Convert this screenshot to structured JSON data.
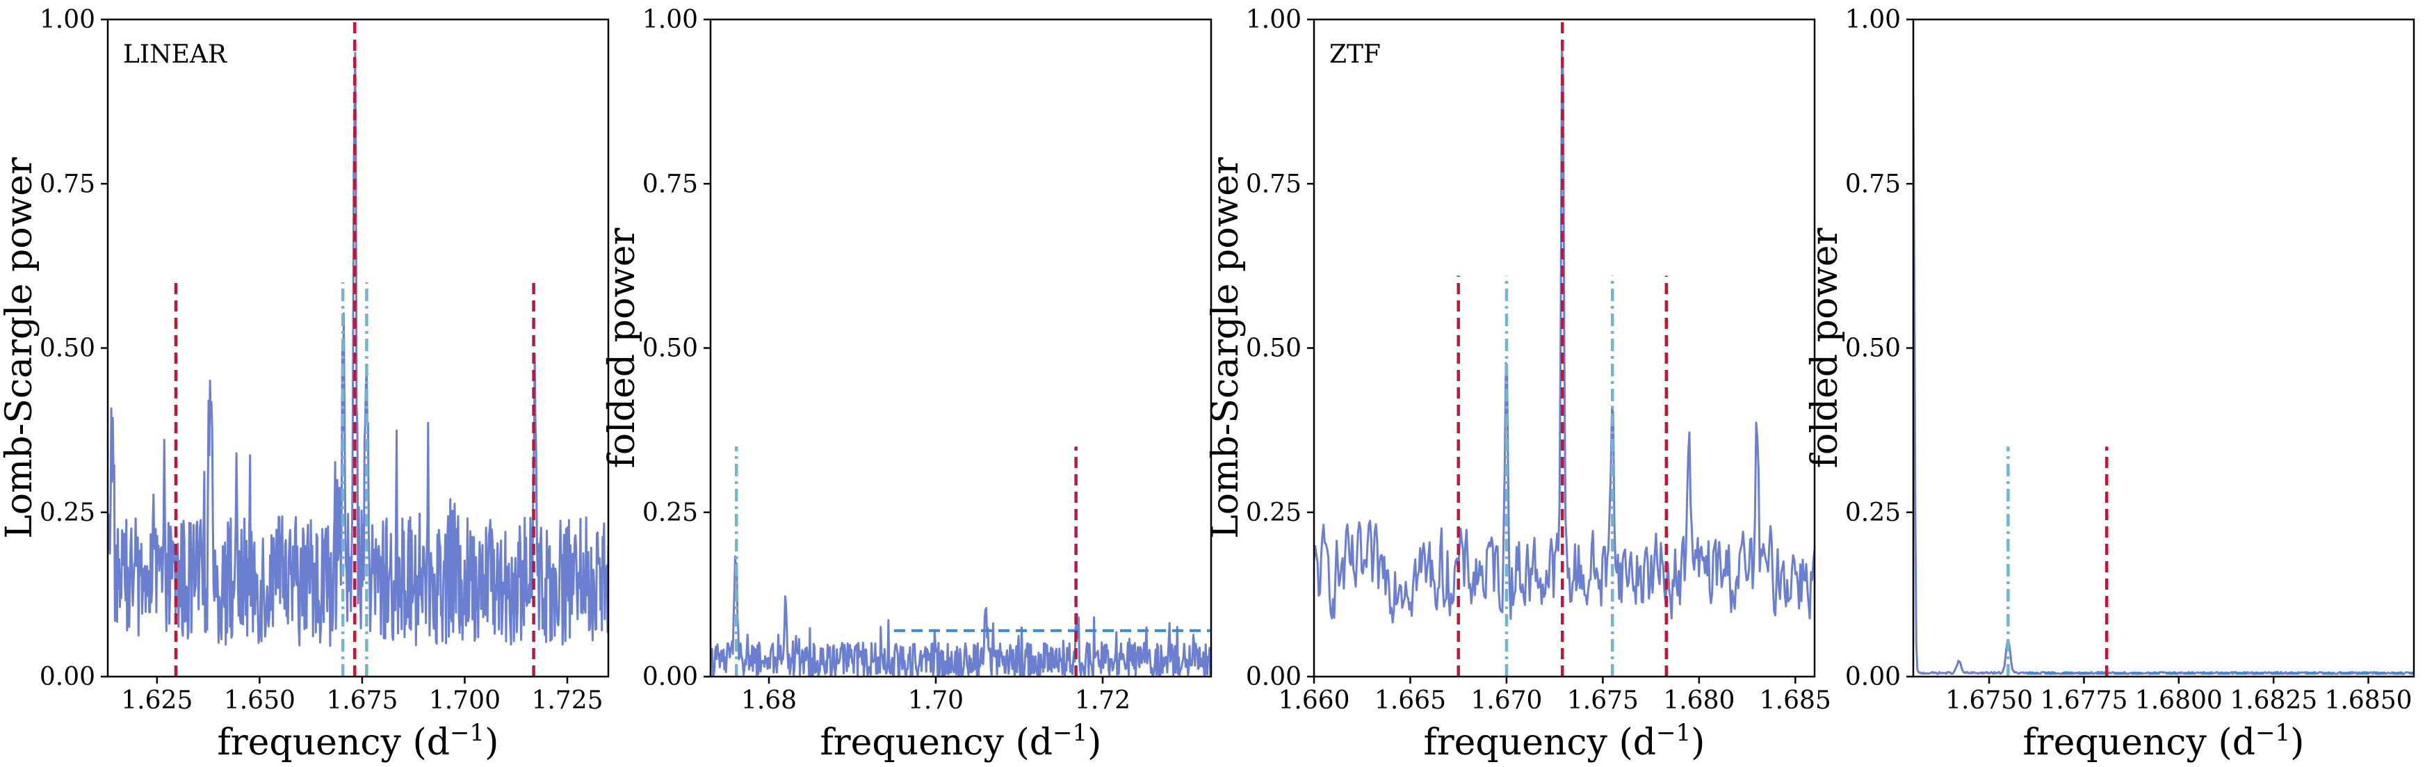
{
  "figure": {
    "colors": {
      "spectrum": "#6a7fcf",
      "red_marker": "#c0163a",
      "teal_marker": "#70b6d0",
      "threshold": "#3a8ad6",
      "frame": "#000000"
    }
  },
  "chart_data": [
    {
      "type": "line",
      "panel_tag": "LINEAR",
      "xlabel": "frequency (d",
      "xlabel_sup": "−1",
      "xlabel_end": ")",
      "ylabel": "Lomb-Scargle power",
      "xlim": [
        1.613,
        1.735
      ],
      "ylim": [
        0,
        1
      ],
      "xticks": [
        1.625,
        1.65,
        1.675,
        1.7,
        1.725
      ],
      "xtick_labels": [
        "1.625",
        "1.650",
        "1.675",
        "1.700",
        "1.725"
      ],
      "yticks": [
        0,
        0.25,
        0.5,
        0.75,
        1.0
      ],
      "ytick_labels": [
        "0.00",
        "0.25",
        "0.50",
        "0.75",
        "1.00"
      ],
      "grid": false,
      "series": [
        {
          "style": "noisy-spectrum",
          "baseline": 0.13,
          "noise": 0.09,
          "count": 700,
          "peaks": [
            {
              "x": 1.6732,
              "y": 0.94
            },
            {
              "x": 1.6705,
              "y": 0.48
            },
            {
              "x": 1.676,
              "y": 0.46
            },
            {
              "x": 1.717,
              "y": 0.44
            },
            {
              "x": 1.638,
              "y": 0.43
            },
            {
              "x": 1.614,
              "y": 0.37
            }
          ]
        }
      ],
      "vlines": [
        {
          "x": 1.6296,
          "y0": 0,
          "y1": 0.6,
          "style": "red-dashed"
        },
        {
          "x": 1.6732,
          "y0": 0,
          "y1": 1.0,
          "style": "red-dashed"
        },
        {
          "x": 1.7168,
          "y0": 0,
          "y1": 0.6,
          "style": "red-dashed"
        },
        {
          "x": 1.6703,
          "y0": 0,
          "y1": 0.6,
          "style": "teal-dashdot"
        },
        {
          "x": 1.6761,
          "y0": 0,
          "y1": 0.6,
          "style": "teal-dashdot"
        }
      ],
      "hlines": []
    },
    {
      "type": "line",
      "panel_tag": "",
      "xlabel": "frequency (d",
      "xlabel_sup": "−1",
      "xlabel_end": ")",
      "ylabel": "folded power",
      "xlim": [
        1.673,
        1.733
      ],
      "ylim": [
        0,
        1
      ],
      "xticks": [
        1.68,
        1.7,
        1.72
      ],
      "xtick_labels": [
        "1.68",
        "1.70",
        "1.72"
      ],
      "yticks": [
        0,
        0.25,
        0.5,
        0.75,
        1.0
      ],
      "ytick_labels": [
        "0.00",
        "0.25",
        "0.50",
        "0.75",
        "1.00"
      ],
      "grid": false,
      "series": [
        {
          "style": "low-spectrum",
          "baseline": 0.02,
          "noise": 0.025,
          "count": 650,
          "peaks": [
            {
              "x": 1.676,
              "y": 0.19
            },
            {
              "x": 1.682,
              "y": 0.1
            },
            {
              "x": 1.706,
              "y": 0.1
            },
            {
              "x": 1.717,
              "y": 0.08
            }
          ]
        }
      ],
      "vlines": [
        {
          "x": 1.6761,
          "y0": 0,
          "y1": 0.35,
          "style": "teal-dashdot"
        },
        {
          "x": 1.7168,
          "y0": 0,
          "y1": 0.35,
          "style": "red-dashed"
        }
      ],
      "hlines": [
        {
          "y": 0.07,
          "x0": 1.695,
          "x1": 1.733,
          "style": "blue-dashed"
        }
      ]
    },
    {
      "type": "line",
      "panel_tag": "ZTF",
      "xlabel": "frequency (d",
      "xlabel_sup": "−1",
      "xlabel_end": ")",
      "ylabel": "Lomb-Scargle power",
      "xlim": [
        1.66,
        1.686
      ],
      "ylim": [
        0,
        1
      ],
      "xticks": [
        1.66,
        1.665,
        1.67,
        1.675,
        1.68,
        1.685
      ],
      "xtick_labels": [
        "1.660",
        "1.665",
        "1.670",
        "1.675",
        "1.680",
        "1.685"
      ],
      "yticks": [
        0,
        0.25,
        0.5,
        0.75,
        1.0
      ],
      "ytick_labels": [
        "0.00",
        "0.25",
        "0.50",
        "0.75",
        "1.00"
      ],
      "grid": false,
      "series": [
        {
          "style": "smooth-spectrum",
          "baseline": 0.13,
          "noise": 0.08,
          "count": 420,
          "peaks": [
            {
              "x": 1.6729,
              "y": 0.94
            },
            {
              "x": 1.67,
              "y": 0.46
            },
            {
              "x": 1.6755,
              "y": 0.45
            },
            {
              "x": 1.6795,
              "y": 0.36
            },
            {
              "x": 1.683,
              "y": 0.36
            }
          ]
        }
      ],
      "vlines": [
        {
          "x": 1.6675,
          "y0": 0,
          "y1": 0.61,
          "style": "red-dashed"
        },
        {
          "x": 1.6729,
          "y0": 0,
          "y1": 1.0,
          "style": "red-dashed"
        },
        {
          "x": 1.6783,
          "y0": 0,
          "y1": 0.61,
          "style": "red-dashed"
        },
        {
          "x": 1.67,
          "y0": 0,
          "y1": 0.61,
          "style": "teal-dashdot"
        },
        {
          "x": 1.6755,
          "y0": 0,
          "y1": 0.61,
          "style": "teal-dashdot"
        }
      ],
      "hlines": []
    },
    {
      "type": "line",
      "panel_tag": "",
      "xlabel": "frequency (d",
      "xlabel_sup": "−1",
      "xlabel_end": ")",
      "ylabel": "folded power",
      "xlim": [
        1.673,
        1.6862
      ],
      "ylim": [
        0,
        1
      ],
      "xticks": [
        1.675,
        1.6775,
        1.68,
        1.6825,
        1.685
      ],
      "xtick_labels": [
        "1.6750",
        "1.6775",
        "1.6800",
        "1.6825",
        "1.6850"
      ],
      "yticks": [
        0,
        0.25,
        0.5,
        0.75,
        1.0
      ],
      "ytick_labels": [
        "0.00",
        "0.25",
        "0.50",
        "0.75",
        "1.00"
      ],
      "grid": false,
      "series": [
        {
          "style": "decay-spectrum",
          "baseline": 0.004,
          "noise": 0.003,
          "count": 500,
          "peaks": [
            {
              "x": 1.673,
              "y": 0.88
            },
            {
              "x": 1.6755,
              "y": 0.055
            },
            {
              "x": 1.6742,
              "y": 0.022
            }
          ]
        }
      ],
      "vlines": [
        {
          "x": 1.6755,
          "y0": 0,
          "y1": 0.35,
          "style": "teal-dashdot"
        },
        {
          "x": 1.6781,
          "y0": 0,
          "y1": 0.35,
          "style": "red-dashed"
        }
      ],
      "hlines": [
        {
          "y": 0.005,
          "x0": 1.676,
          "x1": 1.6862,
          "style": "blue-dashed"
        }
      ]
    }
  ]
}
